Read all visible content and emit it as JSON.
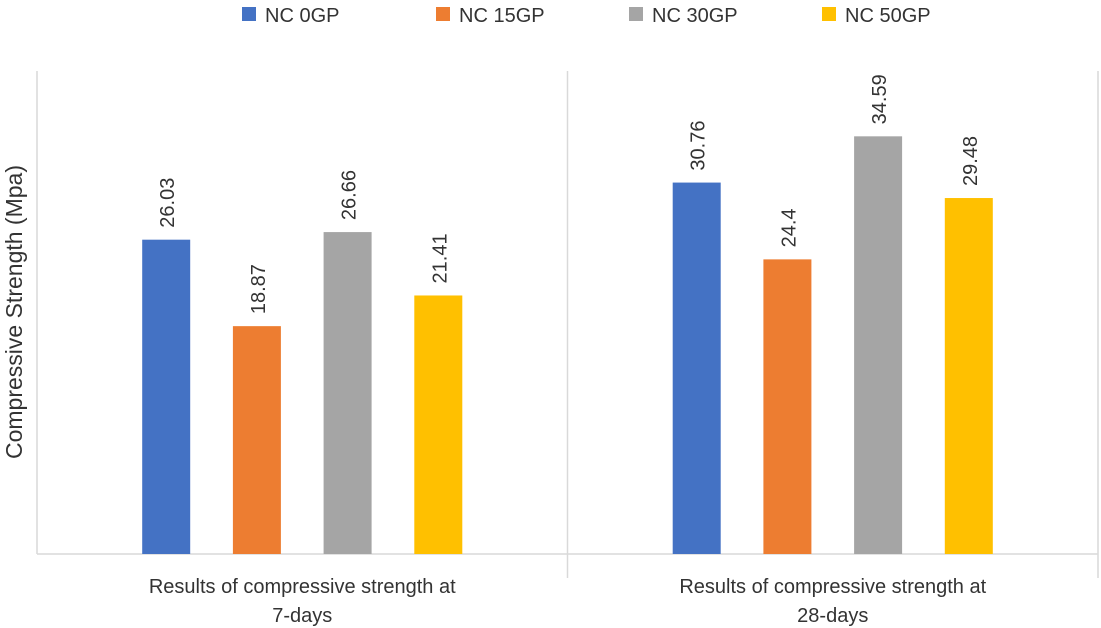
{
  "chart_data": {
    "type": "bar",
    "title": "",
    "xlabel": "",
    "ylabel": "Compressive Strength (Mpa)",
    "ylim": [
      0,
      40
    ],
    "grid": false,
    "legend_position": "top",
    "categories": [
      [
        "Results of compressive strength at",
        "7-days"
      ],
      [
        "Results of compressive strength at",
        "28-days"
      ]
    ],
    "series": [
      {
        "name": "NC 0GP",
        "color": "#4472C4",
        "values": [
          26.03,
          30.76
        ]
      },
      {
        "name": "NC 15GP",
        "color": "#ED7D31",
        "values": [
          18.87,
          24.4
        ]
      },
      {
        "name": "NC 30GP",
        "color": "#A5A5A5",
        "values": [
          26.66,
          34.59
        ]
      },
      {
        "name": "NC 50GP",
        "color": "#FFC000",
        "values": [
          21.41,
          29.48
        ]
      }
    ]
  }
}
